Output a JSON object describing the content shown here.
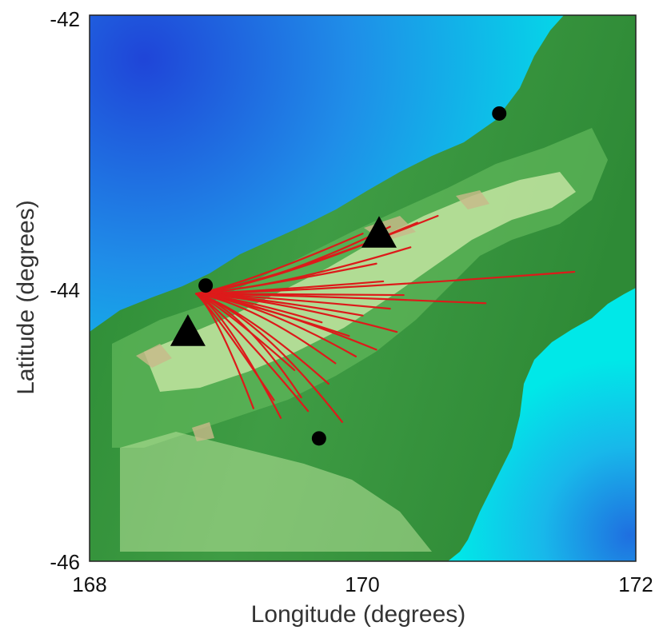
{
  "map": {
    "xlabel": "Longitude (degrees)",
    "ylabel": "Latitude (degrees)",
    "xlim": [
      168,
      172
    ],
    "ylim": [
      -46,
      -42
    ],
    "x_ticks": [
      "168",
      "170",
      "172"
    ],
    "y_ticks": [
      "-42",
      "-44",
      "-46"
    ],
    "colors": {
      "deep_ocean": "#1f45d8",
      "mid_ocean": "#1f9de8",
      "shallow_ocean": "#00eaea",
      "lowland": "#1f7f2a",
      "upland": "#5fb55a",
      "highland": "#d9efb0",
      "peaks": "#c9b98a",
      "trajectories": "#dd1a1a",
      "markers": "#000000"
    },
    "triangles": [
      {
        "lon": 168.72,
        "lat": -44.32
      },
      {
        "lon": 170.12,
        "lat": -43.6
      }
    ],
    "circles": [
      {
        "lon": 171.0,
        "lat": -42.72
      },
      {
        "lon": 168.85,
        "lat": -43.98
      },
      {
        "lon": 169.68,
        "lat": -45.1
      }
    ],
    "trajectory_origin": {
      "lon": 168.78,
      "lat": -44.04
    },
    "trajectory_endpoints": [
      {
        "lon": 170.55,
        "lat": -43.47
      },
      {
        "lon": 170.4,
        "lat": -43.52
      },
      {
        "lon": 170.2,
        "lat": -43.55
      },
      {
        "lon": 170.0,
        "lat": -43.6
      },
      {
        "lon": 171.55,
        "lat": -43.88
      },
      {
        "lon": 170.35,
        "lat": -43.7
      },
      {
        "lon": 170.1,
        "lat": -43.82
      },
      {
        "lon": 170.9,
        "lat": -44.11
      },
      {
        "lon": 170.3,
        "lat": -44.05
      },
      {
        "lon": 170.2,
        "lat": -44.15
      },
      {
        "lon": 170.0,
        "lat": -44.2
      },
      {
        "lon": 170.25,
        "lat": -44.32
      },
      {
        "lon": 169.9,
        "lat": -44.35
      },
      {
        "lon": 170.1,
        "lat": -44.45
      },
      {
        "lon": 169.8,
        "lat": -44.55
      },
      {
        "lon": 169.5,
        "lat": -44.6
      },
      {
        "lon": 169.75,
        "lat": -44.7
      },
      {
        "lon": 169.55,
        "lat": -44.8
      },
      {
        "lon": 169.35,
        "lat": -44.82
      },
      {
        "lon": 169.2,
        "lat": -44.88
      },
      {
        "lon": 169.85,
        "lat": -44.98
      },
      {
        "lon": 169.6,
        "lat": -44.9
      },
      {
        "lon": 169.4,
        "lat": -44.95
      },
      {
        "lon": 169.95,
        "lat": -44.5
      },
      {
        "lon": 170.15,
        "lat": -43.95
      },
      {
        "lon": 169.7,
        "lat": -44.25
      }
    ]
  }
}
